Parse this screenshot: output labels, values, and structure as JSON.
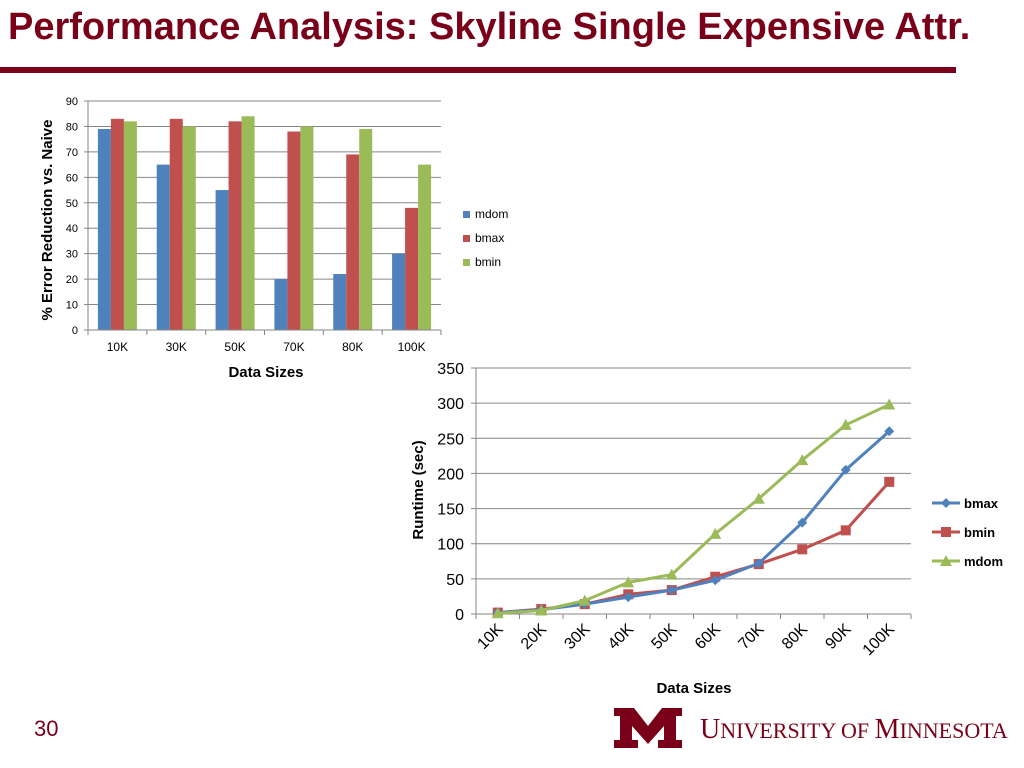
{
  "slide": {
    "title": "Performance Analysis: Skyline Single Expensive Attr.",
    "number": "30",
    "logo_text": "University of Minnesota",
    "brand_color": "#7a0019"
  },
  "chart_data": [
    {
      "type": "bar",
      "title": "",
      "xlabel": "Data Sizes",
      "ylabel": "% Error Reduction vs. Naive",
      "categories": [
        "10K",
        "30K",
        "50K",
        "70K",
        "80K",
        "100K"
      ],
      "ylim": [
        0,
        90
      ],
      "yticks": [
        "0",
        "10",
        "20",
        "30",
        "40",
        "50",
        "60",
        "70",
        "80",
        "90"
      ],
      "grid": true,
      "legend_position": "right",
      "series": [
        {
          "name": "mdom",
          "color": "#4f81bd",
          "values": [
            79,
            65,
            55,
            20,
            22,
            30
          ]
        },
        {
          "name": "bmax",
          "color": "#c0504d",
          "values": [
            83,
            83,
            82,
            78,
            69,
            48
          ]
        },
        {
          "name": "bmin",
          "color": "#9bbb59",
          "values": [
            82,
            80,
            84,
            80,
            79,
            65
          ]
        }
      ]
    },
    {
      "type": "line",
      "title": "",
      "xlabel": "Data Sizes",
      "ylabel": "Runtime (sec)",
      "categories": [
        "10K",
        "20K",
        "30K",
        "40K",
        "50K",
        "60K",
        "70K",
        "80K",
        "90K",
        "100K"
      ],
      "ylim": [
        0,
        350
      ],
      "yticks": [
        "0",
        "50",
        "100",
        "150",
        "200",
        "250",
        "300",
        "350"
      ],
      "grid": true,
      "legend_position": "right",
      "series": [
        {
          "name": "bmax",
          "color": "#4f81bd",
          "marker": "diamond",
          "values": [
            2,
            6,
            14,
            24,
            34,
            48,
            72,
            130,
            205,
            260
          ]
        },
        {
          "name": "bmin",
          "color": "#c0504d",
          "marker": "square",
          "values": [
            2,
            7,
            14,
            28,
            34,
            53,
            71,
            92,
            119,
            188
          ]
        },
        {
          "name": "mdom",
          "color": "#9bbb59",
          "marker": "triangle",
          "values": [
            1,
            5,
            19,
            45,
            56,
            114,
            164,
            219,
            269,
            298
          ]
        }
      ]
    }
  ]
}
